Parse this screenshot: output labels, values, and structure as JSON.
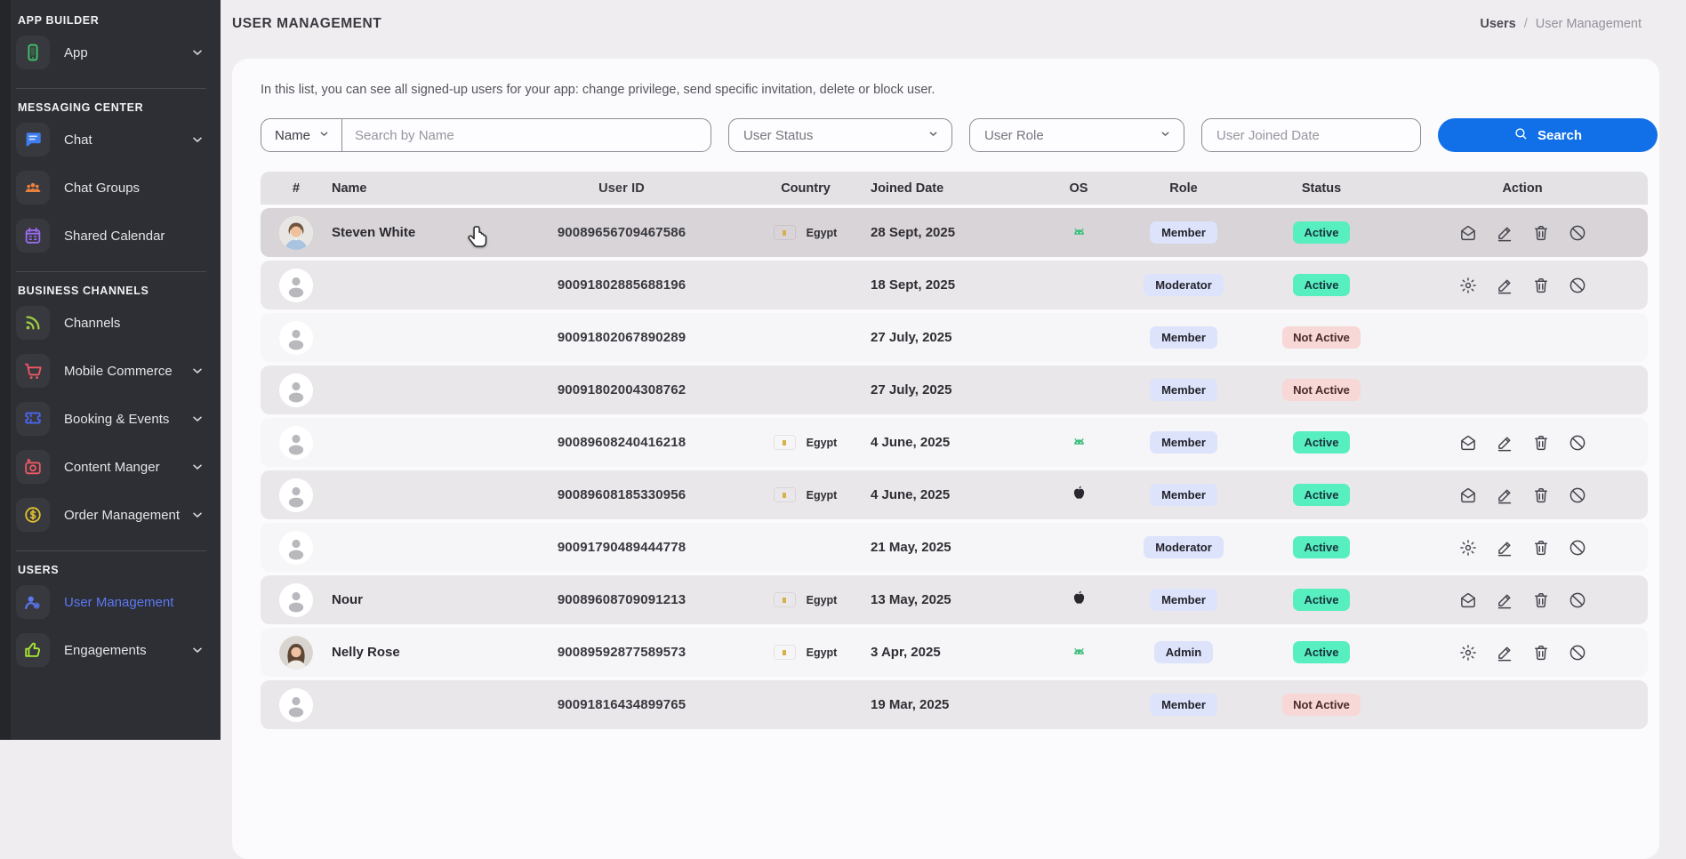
{
  "colors": {
    "accent_blue": "#1170e8",
    "sidebar_bg": "#2d2f34",
    "active_link_blue": "#5d77f3",
    "role_badge_bg": "#dce3fb",
    "status_active_bg": "#57eec0",
    "status_inactive_bg": "#f8d8d6",
    "row_highlight": "#d8d4d7"
  },
  "sidebar": {
    "sections": [
      {
        "label": "APP BUILDER",
        "items": [
          {
            "label": "App",
            "icon": "phone",
            "expandable": true,
            "active": false
          }
        ]
      },
      {
        "label": "MESSAGING CENTER",
        "items": [
          {
            "label": "Chat",
            "icon": "chat",
            "expandable": true,
            "active": false
          },
          {
            "label": "Chat Groups",
            "icon": "people",
            "expandable": false,
            "active": false
          },
          {
            "label": "Shared Calendar",
            "icon": "calendar",
            "expandable": false,
            "active": false
          }
        ]
      },
      {
        "label": "BUSINESS CHANNELS",
        "items": [
          {
            "label": "Channels",
            "icon": "rss",
            "expandable": false,
            "active": false
          },
          {
            "label": "Mobile Commerce",
            "icon": "cart",
            "expandable": true,
            "active": false
          },
          {
            "label": "Booking & Events",
            "icon": "ticket",
            "expandable": true,
            "active": false
          },
          {
            "label": "Content Manger",
            "icon": "camera",
            "expandable": true,
            "active": false
          },
          {
            "label": "Order Management",
            "icon": "dollar",
            "expandable": true,
            "active": false
          }
        ]
      },
      {
        "label": "USERS",
        "items": [
          {
            "label": "User Management",
            "icon": "user-gear",
            "expandable": false,
            "active": true
          },
          {
            "label": "Engagements",
            "icon": "thumbs-up",
            "expandable": true,
            "active": false
          }
        ]
      }
    ]
  },
  "page": {
    "title": "USER MANAGEMENT",
    "breadcrumb": {
      "parent": "Users",
      "separator": "/",
      "current": "User Management"
    },
    "description": "In this list, you can see all signed-up users for your app: change privilege, send specific invitation, delete or block user."
  },
  "filters": {
    "search_field": {
      "selector_label": "Name",
      "placeholder": "Search by Name",
      "value": ""
    },
    "status_select": {
      "placeholder": "User Status"
    },
    "role_select": {
      "placeholder": "User Role"
    },
    "joined_input": {
      "placeholder": "User Joined Date",
      "value": ""
    },
    "search_button": "Search"
  },
  "table": {
    "headers": [
      "#",
      "Name",
      "User ID",
      "Country",
      "Joined Date",
      "OS",
      "Role",
      "Status",
      "Action"
    ],
    "rows": [
      {
        "avatar": "man-photo",
        "name": "Steven White",
        "user_id": "90089656709467586",
        "country": "Egypt",
        "joined": "28 Sept, 2025",
        "os": "android",
        "role": "Member",
        "status": "Active",
        "actions": [
          "mail",
          "edit",
          "delete",
          "block"
        ],
        "highlighted": true
      },
      {
        "avatar": "placeholder",
        "name": "",
        "user_id": "90091802885688196",
        "country": "",
        "joined": "18 Sept, 2025",
        "os": "",
        "role": "Moderator",
        "status": "Active",
        "actions": [
          "settings",
          "edit",
          "delete",
          "block"
        ],
        "highlighted": false
      },
      {
        "avatar": "placeholder",
        "name": "",
        "user_id": "90091802067890289",
        "country": "",
        "joined": "27 July, 2025",
        "os": "",
        "role": "Member",
        "status": "Not Active",
        "actions": [],
        "highlighted": false
      },
      {
        "avatar": "placeholder",
        "name": "",
        "user_id": "90091802004308762",
        "country": "",
        "joined": "27 July, 2025",
        "os": "",
        "role": "Member",
        "status": "Not Active",
        "actions": [],
        "highlighted": false
      },
      {
        "avatar": "placeholder",
        "name": "",
        "user_id": "90089608240416218",
        "country": "Egypt",
        "joined": "4 June, 2025",
        "os": "android",
        "role": "Member",
        "status": "Active",
        "actions": [
          "mail",
          "edit",
          "delete",
          "block"
        ],
        "highlighted": false
      },
      {
        "avatar": "placeholder",
        "name": "",
        "user_id": "90089608185330956",
        "country": "Egypt",
        "joined": "4 June, 2025",
        "os": "apple",
        "role": "Member",
        "status": "Active",
        "actions": [
          "mail",
          "edit",
          "delete",
          "block"
        ],
        "highlighted": false
      },
      {
        "avatar": "placeholder",
        "name": "",
        "user_id": "90091790489444778",
        "country": "",
        "joined": "21 May, 2025",
        "os": "",
        "role": "Moderator",
        "status": "Active",
        "actions": [
          "settings",
          "edit",
          "delete",
          "block"
        ],
        "highlighted": false
      },
      {
        "avatar": "placeholder",
        "name": "Nour",
        "user_id": "90089608709091213",
        "country": "Egypt",
        "joined": "13 May, 2025",
        "os": "apple",
        "role": "Member",
        "status": "Active",
        "actions": [
          "mail",
          "edit",
          "delete",
          "block"
        ],
        "highlighted": false
      },
      {
        "avatar": "woman-photo",
        "name": "Nelly Rose",
        "user_id": "90089592877589573",
        "country": "Egypt",
        "joined": "3 Apr, 2025",
        "os": "android",
        "role": "Admin",
        "status": "Active",
        "actions": [
          "settings",
          "edit",
          "delete",
          "block"
        ],
        "highlighted": false
      },
      {
        "avatar": "placeholder",
        "name": "",
        "user_id": "90091816434899765",
        "country": "",
        "joined": "19 Mar, 2025",
        "os": "",
        "role": "Member",
        "status": "Not Active",
        "actions": [],
        "highlighted": false
      }
    ]
  }
}
